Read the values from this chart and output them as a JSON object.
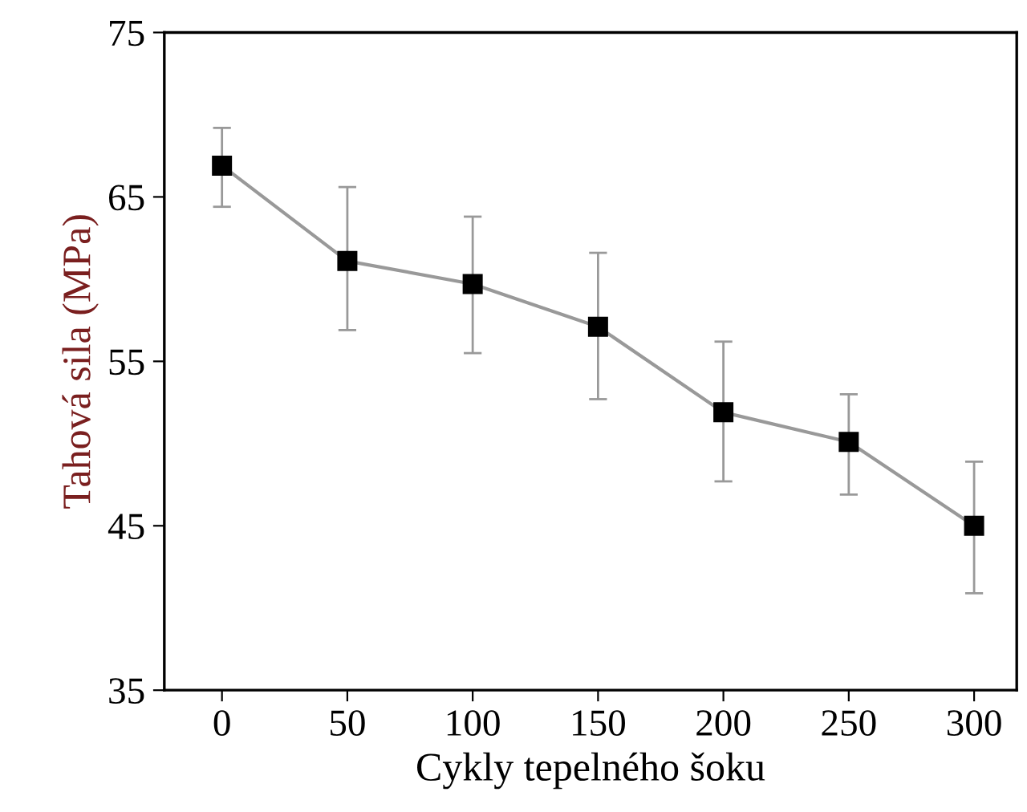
{
  "chart_data": {
    "type": "line",
    "xlabel": "Cykly tepelného šoku",
    "ylabel": "Tahová sila (MPa)",
    "x": [
      0,
      50,
      100,
      150,
      200,
      250,
      300
    ],
    "series": [
      {
        "color": "#000000",
        "values": [
          66.9,
          61.1,
          59.7,
          57.1,
          51.9,
          50.1,
          45.0
        ],
        "errors": [
          [
            64.4,
            69.2
          ],
          [
            56.9,
            65.6
          ],
          [
            55.5,
            63.8
          ],
          [
            52.7,
            61.6
          ],
          [
            47.7,
            56.2
          ],
          [
            46.9,
            53.0
          ],
          [
            40.9,
            48.9
          ]
        ]
      }
    ],
    "xlim": [
      -23,
      317
    ],
    "ylim": [
      35,
      75
    ],
    "xticks": [
      0,
      50,
      100,
      150,
      200,
      250,
      300
    ],
    "yticks": [
      35,
      45,
      55,
      65,
      75
    ],
    "marker": "square",
    "line_style": "solid",
    "grid": false
  }
}
